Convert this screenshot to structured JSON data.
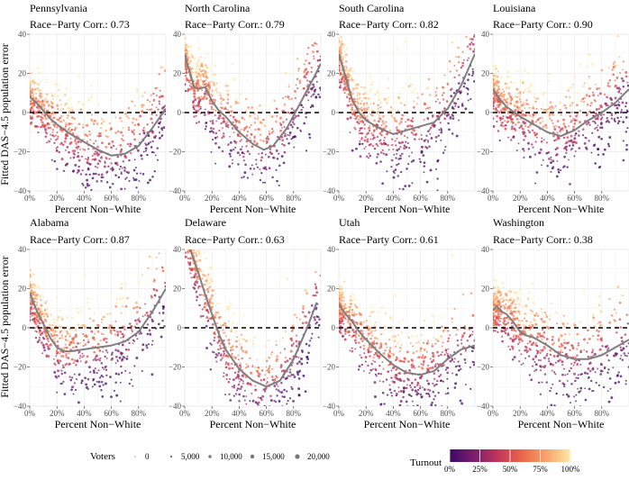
{
  "figure": {
    "ylabel": "Fitted DAS−4.5 population error",
    "xlabel": "Percent Non−White",
    "corr_prefix": "Race−Party Corr.: ",
    "x_ticks": [
      "0%",
      "20%",
      "40%",
      "60%",
      "80%"
    ],
    "y_ticks": [
      "40",
      "20",
      "0",
      "−20",
      "−40"
    ],
    "legend": {
      "voters_title": "Voters",
      "voters_labels": [
        "0",
        "5,000",
        "10,000",
        "15,000",
        "20,000"
      ],
      "turnout_title": "Turnout",
      "turnout_labels": [
        "0%",
        "25%",
        "50%",
        "75%",
        "100%"
      ]
    }
  },
  "colors": {
    "panel_bg": "#ffffff",
    "grid": "#ebebeb",
    "smooth_line": "#7f7f7f",
    "zero_line": "#000000",
    "turnout_scale": [
      "#3d0965",
      "#7c1d6f",
      "#c0365a",
      "#ea6749",
      "#f8a26a",
      "#fde9a6"
    ]
  },
  "chart_data": [
    {
      "type": "scatter",
      "title": "Pennsylvania",
      "race_party_corr": "0.73",
      "xlim": [
        0,
        100
      ],
      "ylim": [
        -40,
        40
      ],
      "smooth": [
        [
          0,
          8
        ],
        [
          5,
          5
        ],
        [
          10,
          1
        ],
        [
          15,
          -3
        ],
        [
          20,
          -6
        ],
        [
          30,
          -11
        ],
        [
          40,
          -15
        ],
        [
          50,
          -19
        ],
        [
          60,
          -22
        ],
        [
          70,
          -21
        ],
        [
          80,
          -17
        ],
        [
          90,
          -8
        ],
        [
          100,
          2
        ]
      ]
    },
    {
      "type": "scatter",
      "title": "North Carolina",
      "race_party_corr": "0.79",
      "xlim": [
        0,
        100
      ],
      "ylim": [
        -40,
        40
      ],
      "smooth": [
        [
          0,
          30
        ],
        [
          3,
          22
        ],
        [
          7,
          13
        ],
        [
          10,
          12
        ],
        [
          15,
          13
        ],
        [
          20,
          6
        ],
        [
          25,
          1
        ],
        [
          30,
          -2
        ],
        [
          40,
          -10
        ],
        [
          50,
          -16
        ],
        [
          58,
          -19
        ],
        [
          65,
          -17
        ],
        [
          75,
          -8
        ],
        [
          85,
          5
        ],
        [
          95,
          18
        ],
        [
          100,
          25
        ]
      ]
    },
    {
      "type": "scatter",
      "title": "South Carolina",
      "race_party_corr": "0.82",
      "xlim": [
        0,
        100
      ],
      "ylim": [
        -40,
        40
      ],
      "smooth": [
        [
          0,
          30
        ],
        [
          5,
          18
        ],
        [
          10,
          6
        ],
        [
          15,
          0
        ],
        [
          20,
          -4
        ],
        [
          30,
          -8
        ],
        [
          40,
          -11
        ],
        [
          50,
          -9
        ],
        [
          60,
          -7
        ],
        [
          70,
          -5
        ],
        [
          80,
          2
        ],
        [
          90,
          14
        ],
        [
          100,
          30
        ]
      ]
    },
    {
      "type": "scatter",
      "title": "Louisiana",
      "race_party_corr": "0.90",
      "xlim": [
        0,
        100
      ],
      "ylim": [
        -40,
        40
      ],
      "smooth": [
        [
          0,
          12
        ],
        [
          5,
          7
        ],
        [
          10,
          3
        ],
        [
          20,
          -2
        ],
        [
          30,
          -6
        ],
        [
          40,
          -10
        ],
        [
          50,
          -12
        ],
        [
          60,
          -9
        ],
        [
          70,
          -4
        ],
        [
          80,
          0
        ],
        [
          90,
          5
        ],
        [
          100,
          12
        ]
      ]
    },
    {
      "type": "scatter",
      "title": "Alabama",
      "race_party_corr": "0.87",
      "xlim": [
        0,
        100
      ],
      "ylim": [
        -40,
        40
      ],
      "smooth": [
        [
          0,
          18
        ],
        [
          5,
          9
        ],
        [
          10,
          2
        ],
        [
          15,
          -5
        ],
        [
          20,
          -10
        ],
        [
          25,
          -12
        ],
        [
          30,
          -12
        ],
        [
          40,
          -11
        ],
        [
          50,
          -10
        ],
        [
          60,
          -9
        ],
        [
          70,
          -7
        ],
        [
          80,
          -2
        ],
        [
          90,
          8
        ],
        [
          100,
          20
        ]
      ]
    },
    {
      "type": "scatter",
      "title": "Delaware",
      "race_party_corr": "0.63",
      "xlim": [
        0,
        100
      ],
      "ylim": [
        -40,
        40
      ],
      "smooth": [
        [
          0,
          50
        ],
        [
          5,
          38
        ],
        [
          10,
          28
        ],
        [
          15,
          17
        ],
        [
          20,
          7
        ],
        [
          25,
          -3
        ],
        [
          30,
          -11
        ],
        [
          40,
          -21
        ],
        [
          50,
          -27
        ],
        [
          60,
          -30
        ],
        [
          70,
          -27
        ],
        [
          80,
          -16
        ],
        [
          90,
          0
        ],
        [
          97,
          13
        ]
      ]
    },
    {
      "type": "scatter",
      "title": "Utah",
      "race_party_corr": "0.61",
      "xlim": [
        0,
        100
      ],
      "ylim": [
        -40,
        40
      ],
      "smooth": [
        [
          0,
          12
        ],
        [
          5,
          7
        ],
        [
          10,
          3
        ],
        [
          15,
          -2
        ],
        [
          20,
          -6
        ],
        [
          30,
          -13
        ],
        [
          40,
          -19
        ],
        [
          50,
          -23
        ],
        [
          60,
          -24
        ],
        [
          70,
          -22
        ],
        [
          80,
          -16
        ],
        [
          90,
          -11
        ],
        [
          100,
          -9
        ]
      ]
    },
    {
      "type": "scatter",
      "title": "Washington",
      "race_party_corr": "0.38",
      "xlim": [
        0,
        100
      ],
      "ylim": [
        -40,
        40
      ],
      "smooth": [
        [
          0,
          9
        ],
        [
          3,
          11
        ],
        [
          7,
          8
        ],
        [
          10,
          7
        ],
        [
          15,
          3
        ],
        [
          20,
          -2
        ],
        [
          25,
          -4
        ],
        [
          30,
          -5
        ],
        [
          40,
          -9
        ],
        [
          50,
          -14
        ],
        [
          60,
          -16
        ],
        [
          70,
          -16
        ],
        [
          80,
          -14
        ],
        [
          90,
          -10
        ],
        [
          100,
          -6
        ]
      ]
    }
  ]
}
